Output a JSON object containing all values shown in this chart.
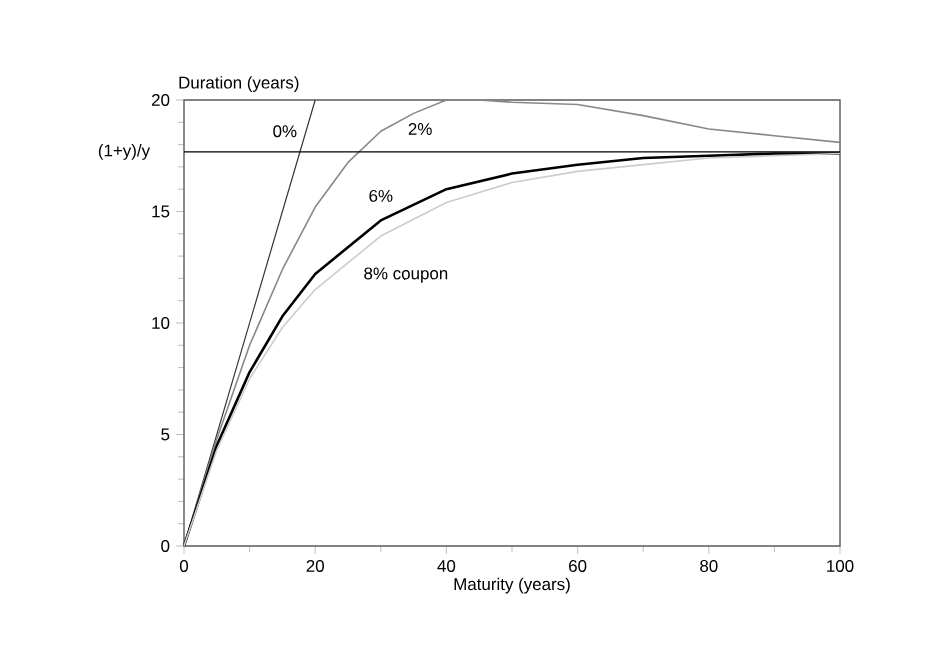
{
  "chart_data": {
    "type": "line",
    "xlabel": "Maturity (years)",
    "ylabel": "Duration (years)",
    "xlim": [
      0,
      100
    ],
    "ylim": [
      0,
      20
    ],
    "xticks": [
      0,
      20,
      40,
      60,
      80,
      100
    ],
    "yticks": [
      0,
      5,
      10,
      15,
      20
    ],
    "grid": false,
    "marker": "none",
    "series": [
      {
        "name": "0%",
        "color": "#333333",
        "x": [
          0,
          20
        ],
        "values": [
          0,
          20
        ]
      },
      {
        "name": "2%",
        "color": "#888888",
        "x": [
          0,
          5,
          10,
          15,
          20,
          25,
          30,
          35,
          40,
          45,
          50,
          60,
          70,
          80,
          90,
          100
        ],
        "values": [
          0,
          4.8,
          9,
          12.4,
          15.2,
          17.2,
          18.6,
          19.4,
          20,
          20,
          19.9,
          19.8,
          19.3,
          18.7,
          18.4,
          18.1
        ]
      },
      {
        "name": "6%",
        "color": "#000000",
        "x": [
          0,
          5,
          10,
          15,
          20,
          30,
          40,
          50,
          60,
          70,
          80,
          90,
          100
        ],
        "values": [
          0,
          4.5,
          7.8,
          10.3,
          12.2,
          14.6,
          16,
          16.7,
          17.1,
          17.4,
          17.5,
          17.6,
          17.6
        ]
      },
      {
        "name": "8% coupon",
        "color": "#cccccc",
        "x": [
          0,
          5,
          10,
          15,
          20,
          30,
          40,
          50,
          60,
          70,
          80,
          90,
          100
        ],
        "values": [
          0,
          4.3,
          7.5,
          9.8,
          11.5,
          13.9,
          15.4,
          16.3,
          16.8,
          17.1,
          17.4,
          17.5,
          17.6
        ]
      }
    ],
    "ref_lines": [
      {
        "axis": "y",
        "value": 17.67,
        "label": "(1+y)/y",
        "color": "#000000"
      }
    ]
  }
}
